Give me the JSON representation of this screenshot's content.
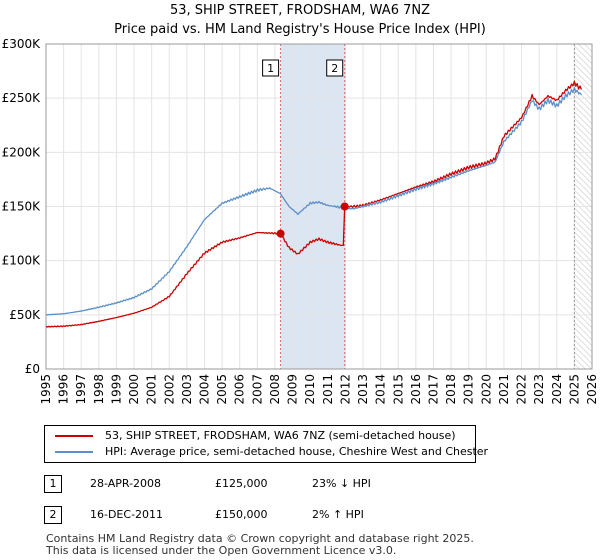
{
  "title": "53, SHIP STREET, FRODSHAM, WA6 7NZ",
  "subtitle": "Price paid vs. HM Land Registry's House Price Index (HPI)",
  "colors": {
    "property": "#cc0000",
    "hpi": "#5b8fc9",
    "band": "#dce6f2",
    "vline": "#e06060",
    "vline_future": "#999999"
  },
  "legend": {
    "property_label": "53, SHIP STREET, FRODSHAM, WA6 7NZ (semi-detached house)",
    "hpi_label": "HPI: Average price, semi-detached house, Cheshire West and Chester"
  },
  "transactions": [
    {
      "id": "1",
      "date": "28-APR-2008",
      "price": "£125,000",
      "delta": "23% ↓ HPI"
    },
    {
      "id": "2",
      "date": "16-DEC-2011",
      "price": "£150,000",
      "delta": "2% ↑ HPI"
    }
  ],
  "footer": {
    "line1": "Contains HM Land Registry data © Crown copyright and database right 2025.",
    "line2": "This data is licensed under the Open Government Licence v3.0."
  },
  "chart_data": {
    "type": "line",
    "xlim": [
      1995,
      2026
    ],
    "ylim": [
      0,
      300000
    ],
    "y_ticks": [
      0,
      50000,
      100000,
      150000,
      200000,
      250000,
      300000
    ],
    "y_tick_labels": [
      "£0",
      "£50K",
      "£100K",
      "£150K",
      "£200K",
      "£250K",
      "£300K"
    ],
    "x_ticks": [
      1995,
      1996,
      1997,
      1998,
      1999,
      2000,
      2001,
      2002,
      2003,
      2004,
      2005,
      2006,
      2007,
      2008,
      2009,
      2010,
      2011,
      2012,
      2013,
      2014,
      2015,
      2016,
      2017,
      2018,
      2019,
      2020,
      2021,
      2022,
      2023,
      2024,
      2025,
      2026
    ],
    "grid": true,
    "shaded_band": [
      2008.32,
      2011.96
    ],
    "future_line": 2025.0,
    "markers": [
      {
        "label": "1",
        "x": 2008.32,
        "y": 125000
      },
      {
        "label": "2",
        "x": 2011.96,
        "y": 150000
      }
    ],
    "series": [
      {
        "name": "53, SHIP STREET, FRODSHAM, WA6 7NZ (semi-detached house)",
        "x": [
          1995,
          1996,
          1997,
          1998,
          1999,
          2000,
          2001,
          2002,
          2003,
          2004,
          2005,
          2006,
          2007,
          2008.32,
          2008.8,
          2009.3,
          2010,
          2010.5,
          2011,
          2011.8,
          2011.96,
          2012.5,
          2013,
          2014,
          2015,
          2016,
          2017,
          2018,
          2019,
          2020,
          2020.5,
          2021,
          2022,
          2022.6,
          2023,
          2023.5,
          2024,
          2024.5,
          2025,
          2025.4
        ],
        "values": [
          39000,
          39500,
          41000,
          44000,
          47500,
          51500,
          57000,
          67000,
          88000,
          107000,
          117000,
          121000,
          126000,
          125000,
          112000,
          106000,
          117000,
          120000,
          117000,
          114000,
          150000,
          150000,
          151000,
          156000,
          162000,
          168000,
          173000,
          180000,
          186000,
          190000,
          194000,
          215000,
          232000,
          252000,
          244000,
          252000,
          248000,
          257000,
          264000,
          258000
        ]
      },
      {
        "name": "HPI: Average price, semi-detached house, Cheshire West and Chester",
        "x": [
          1995,
          1996,
          1997,
          1998,
          1999,
          2000,
          2001,
          2002,
          2003,
          2004,
          2005,
          2006,
          2007,
          2007.7,
          2008.3,
          2008.8,
          2009.3,
          2010,
          2010.5,
          2011,
          2011.8,
          2012,
          2012.5,
          2013,
          2014,
          2015,
          2016,
          2017,
          2018,
          2019,
          2020,
          2020.5,
          2021,
          2022,
          2022.6,
          2023,
          2023.5,
          2024,
          2024.5,
          2025,
          2025.4
        ],
        "values": [
          50000,
          51000,
          53500,
          57000,
          61000,
          66000,
          74000,
          90000,
          113000,
          138000,
          153000,
          159000,
          165000,
          167000,
          162000,
          150000,
          143000,
          153000,
          154000,
          151000,
          149000,
          148000,
          148000,
          150000,
          154000,
          160000,
          166000,
          171000,
          177000,
          183000,
          188000,
          191000,
          210000,
          228000,
          248000,
          240000,
          248000,
          243000,
          252000,
          258000,
          253000
        ]
      }
    ]
  }
}
